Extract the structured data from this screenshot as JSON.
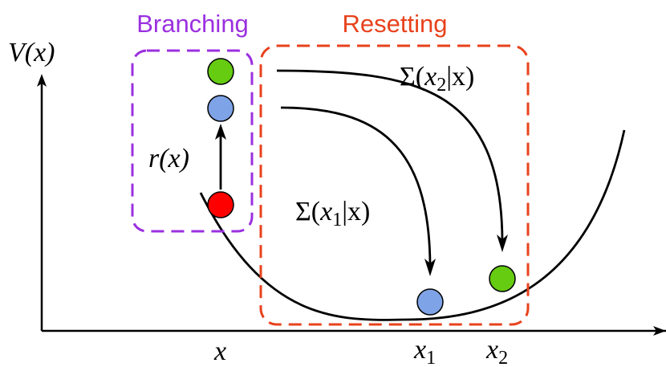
{
  "headings": {
    "branching": "Branching",
    "resetting": "Resetting"
  },
  "axes": {
    "y_label": "V(x)"
  },
  "x_ticks": {
    "x": "x",
    "x1": "x",
    "x1_sub": "1",
    "x2": "x",
    "x2_sub": "2"
  },
  "annotations": {
    "rate": "r(x)",
    "sigma2_sym": "Σ(",
    "sigma2_var": "x",
    "sigma2_sub": "2",
    "sigma2_rest": "|x)",
    "sigma1_sym": "Σ(",
    "sigma1_var": "x",
    "sigma1_sub": "1",
    "sigma1_rest": "|x)"
  },
  "colors": {
    "branching": "#9b30e0",
    "resetting": "#e8421c",
    "particle_red": "#ff0000",
    "particle_blue": "#7ea3e6",
    "particle_green": "#66cc11"
  }
}
